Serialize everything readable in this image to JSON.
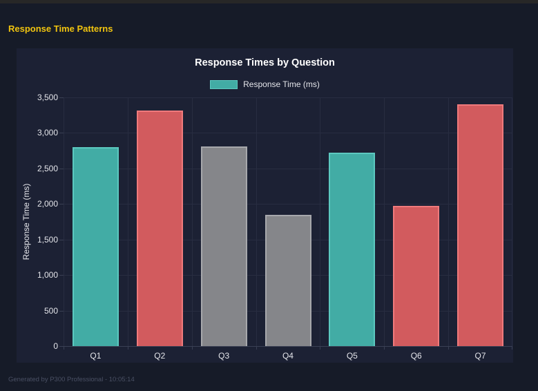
{
  "page": {
    "title": "Response Time Patterns",
    "footer": "Generated by P300 Professional - 10:05:14"
  },
  "colors": {
    "page_bg": "#161B28",
    "panel_bg": "#1C2134",
    "top_strip": "#272727",
    "title_yellow": "#F1C40F",
    "grid": "#282D41",
    "axis": "#3A4054",
    "tick_text": "#E4E5EA",
    "chart_title_text": "#FFFFFF",
    "footer_text": "#4A5064"
  },
  "chart_data": {
    "type": "bar",
    "title": "Response Times by Question",
    "legend_label": "Response Time (ms)",
    "legend_position": "top",
    "legend_swatch_color": "#42ACA5",
    "categories": [
      "Q1",
      "Q2",
      "Q3",
      "Q4",
      "Q5",
      "Q6",
      "Q7"
    ],
    "series": [
      {
        "name": "Response Time (ms)",
        "values": [
          2800,
          3320,
          2810,
          1850,
          2720,
          1970,
          3400
        ]
      }
    ],
    "bar_fills": [
      "#42ACA5",
      "#D25B5E",
      "#85868A",
      "#85868A",
      "#42ACA5",
      "#D25B5E",
      "#D25B5E"
    ],
    "bar_borders": [
      "#5CC9C0",
      "#EF7A7C",
      "#A7A8AC",
      "#A7A8AC",
      "#5CC9C0",
      "#EF7A7C",
      "#EF7A7C"
    ],
    "xlabel": "",
    "ylabel": "Response Time (ms)",
    "ylim": [
      0,
      3500
    ],
    "ytick_step": 500,
    "ytick_labels": [
      "0",
      "500",
      "1,000",
      "1,500",
      "2,000",
      "2,500",
      "3,000",
      "3,500"
    ],
    "grid": true
  }
}
